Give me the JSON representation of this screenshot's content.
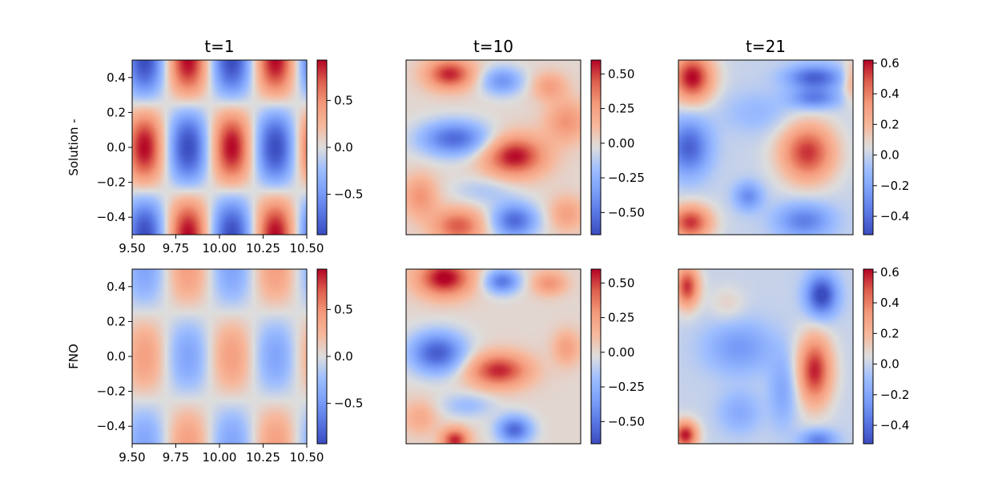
{
  "chart_data": {
    "type": "heatmap",
    "colormap": "coolwarm",
    "columns": [
      "t=1",
      "t=10",
      "t=21"
    ],
    "rows": [
      "Solution -",
      "FNO"
    ],
    "x_range": [
      9.5,
      10.5
    ],
    "y_range": [
      -0.5,
      0.5
    ],
    "x_tick_labels": [
      "9.50",
      "9.75",
      "10.00",
      "10.25",
      "10.50"
    ],
    "x_tick_values": [
      9.5,
      9.75,
      10.0,
      10.25,
      10.5
    ],
    "y_tick_labels": [
      "0.4",
      "0.2",
      "0.0",
      "−0.2",
      "−0.4"
    ],
    "y_tick_values": [
      0.4,
      0.2,
      0.0,
      -0.2,
      -0.4
    ],
    "panels": [
      {
        "row": 0,
        "col": 0,
        "title": "t=1",
        "ylabel": "Solution -",
        "show_axes": true,
        "amplitude": 1.0,
        "color_range": [
          -0.93,
          0.93
        ],
        "colorbar_ticks": [
          0.5,
          0.0,
          -0.5
        ],
        "colorbar_tick_labels": [
          "0.5",
          "0.0",
          "−0.5"
        ]
      },
      {
        "row": 0,
        "col": 1,
        "title": "t=10",
        "ylabel": "",
        "show_axes": false,
        "amplitude": 1.0,
        "color_range": [
          -0.66,
          0.6
        ],
        "colorbar_ticks": [
          0.5,
          0.25,
          0.0,
          -0.25,
          -0.5
        ],
        "colorbar_tick_labels": [
          "0.50",
          "0.25",
          "0.00",
          "−0.25",
          "−0.50"
        ]
      },
      {
        "row": 0,
        "col": 2,
        "title": "t=21",
        "ylabel": "",
        "show_axes": false,
        "amplitude": 1.0,
        "color_range": [
          -0.52,
          0.62
        ],
        "colorbar_ticks": [
          0.6,
          0.4,
          0.2,
          0.0,
          -0.2,
          -0.4
        ],
        "colorbar_tick_labels": [
          "0.6",
          "0.4",
          "0.2",
          "0.0",
          "−0.2",
          "−0.4"
        ]
      },
      {
        "row": 1,
        "col": 0,
        "title": "",
        "ylabel": "FNO",
        "show_axes": true,
        "amplitude": 0.45,
        "color_range": [
          -0.93,
          0.93
        ],
        "colorbar_ticks": [
          0.5,
          0.0,
          -0.5
        ],
        "colorbar_tick_labels": [
          "0.5",
          "0.0",
          "−0.5"
        ]
      },
      {
        "row": 1,
        "col": 1,
        "title": "",
        "ylabel": "",
        "show_axes": false,
        "amplitude": 1.0,
        "color_range": [
          -0.66,
          0.6
        ],
        "colorbar_ticks": [
          0.5,
          0.25,
          0.0,
          -0.25,
          -0.5
        ],
        "colorbar_tick_labels": [
          "0.50",
          "0.25",
          "0.00",
          "−0.25",
          "−0.50"
        ]
      },
      {
        "row": 1,
        "col": 2,
        "title": "",
        "ylabel": "",
        "show_axes": false,
        "amplitude": 1.0,
        "color_range": [
          -0.52,
          0.62
        ],
        "colorbar_ticks": [
          0.6,
          0.4,
          0.2,
          0.0,
          -0.2,
          -0.4
        ],
        "colorbar_tick_labels": [
          "0.6",
          "0.4",
          "0.2",
          "0.0",
          "−0.2",
          "−0.4"
        ]
      }
    ]
  }
}
